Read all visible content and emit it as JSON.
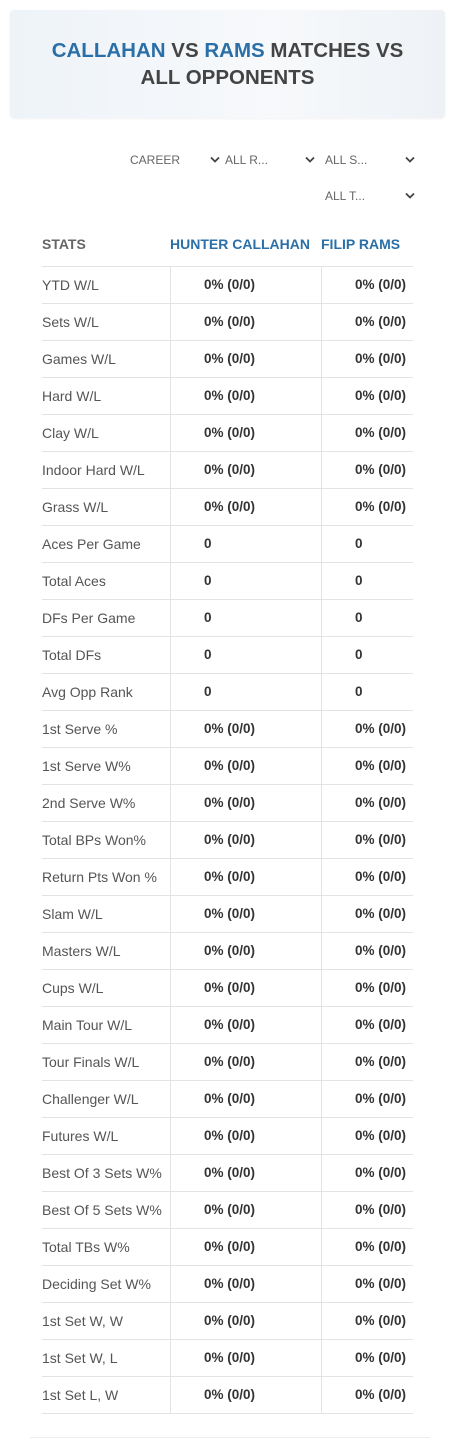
{
  "header": {
    "title": {
      "player1": "CALLAHAN",
      "vs": "VS",
      "player2": "RAMS",
      "rest": "MATCHES VS ALL OPPONENTS"
    }
  },
  "filters": [
    "CAREER",
    "ALL R...",
    "ALL S...",
    "ALL T..."
  ],
  "table": {
    "columns": [
      "STATS",
      "HUNTER CALLAHAN",
      "FILIP RAMS"
    ],
    "rows": [
      [
        "YTD W/L",
        "0% (0/0)",
        "0% (0/0)"
      ],
      [
        "Sets W/L",
        "0% (0/0)",
        "0% (0/0)"
      ],
      [
        "Games W/L",
        "0% (0/0)",
        "0% (0/0)"
      ],
      [
        "Hard W/L",
        "0% (0/0)",
        "0% (0/0)"
      ],
      [
        "Clay W/L",
        "0% (0/0)",
        "0% (0/0)"
      ],
      [
        "Indoor Hard W/L",
        "0% (0/0)",
        "0% (0/0)"
      ],
      [
        "Grass W/L",
        "0% (0/0)",
        "0% (0/0)"
      ],
      [
        "Aces Per Game",
        "0",
        "0"
      ],
      [
        "Total Aces",
        "0",
        "0"
      ],
      [
        "DFs Per Game",
        "0",
        "0"
      ],
      [
        "Total DFs",
        "0",
        "0"
      ],
      [
        "Avg Opp Rank",
        "0",
        "0"
      ],
      [
        "1st Serve %",
        "0% (0/0)",
        "0% (0/0)"
      ],
      [
        "1st Serve W%",
        "0% (0/0)",
        "0% (0/0)"
      ],
      [
        "2nd Serve W%",
        "0% (0/0)",
        "0% (0/0)"
      ],
      [
        "Total BPs Won%",
        "0% (0/0)",
        "0% (0/0)"
      ],
      [
        "Return Pts Won %",
        "0% (0/0)",
        "0% (0/0)"
      ],
      [
        "Slam W/L",
        "0% (0/0)",
        "0% (0/0)"
      ],
      [
        "Masters W/L",
        "0% (0/0)",
        "0% (0/0)"
      ],
      [
        "Cups W/L",
        "0% (0/0)",
        "0% (0/0)"
      ],
      [
        "Main Tour W/L",
        "0% (0/0)",
        "0% (0/0)"
      ],
      [
        "Tour Finals W/L",
        "0% (0/0)",
        "0% (0/0)"
      ],
      [
        "Challenger W/L",
        "0% (0/0)",
        "0% (0/0)"
      ],
      [
        "Futures W/L",
        "0% (0/0)",
        "0% (0/0)"
      ],
      [
        "Best Of 3 Sets W%",
        "0% (0/0)",
        "0% (0/0)"
      ],
      [
        "Best Of 5 Sets W%",
        "0% (0/0)",
        "0% (0/0)"
      ],
      [
        "Total TBs W%",
        "0% (0/0)",
        "0% (0/0)"
      ],
      [
        "Deciding Set W%",
        "0% (0/0)",
        "0% (0/0)"
      ],
      [
        "1st Set W, W",
        "0% (0/0)",
        "0% (0/0)"
      ],
      [
        "1st Set W, L",
        "0% (0/0)",
        "0% (0/0)"
      ],
      [
        "1st Set L, W",
        "0% (0/0)",
        "0% (0/0)"
      ]
    ]
  }
}
